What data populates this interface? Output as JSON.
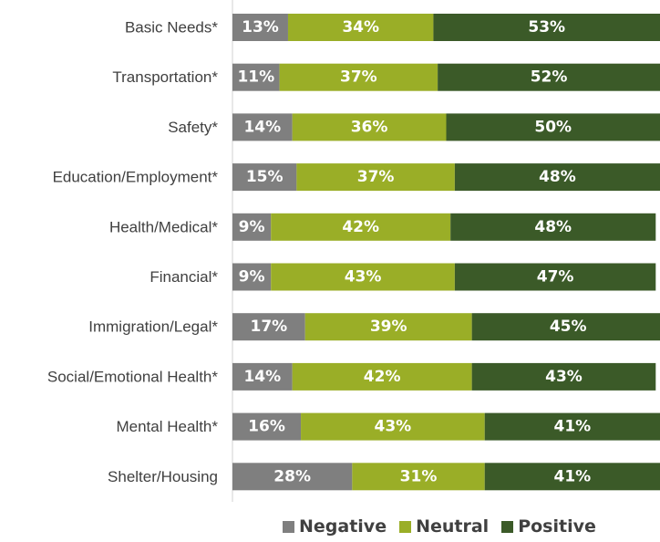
{
  "chart_data": {
    "type": "bar",
    "orientation": "horizontal",
    "stacked": true,
    "categories": [
      "Basic Needs*",
      "Transportation*",
      "Safety*",
      "Education/Employment*",
      "Health/Medical*",
      "Financial*",
      "Immigration/Legal*",
      "Social/Emotional Health*",
      "Mental Health*",
      "Shelter/Housing"
    ],
    "series": [
      {
        "name": "Negative",
        "color": "#7f7f7f",
        "values": [
          13,
          11,
          14,
          15,
          9,
          9,
          17,
          14,
          16,
          28
        ]
      },
      {
        "name": "Neutral",
        "color": "#9aae27",
        "values": [
          34,
          37,
          36,
          37,
          42,
          43,
          39,
          42,
          43,
          31
        ]
      },
      {
        "name": "Positive",
        "color": "#3b5a28",
        "values": [
          53,
          52,
          50,
          48,
          48,
          47,
          45,
          43,
          41,
          41
        ]
      }
    ],
    "value_suffix": "%",
    "xlim": [
      0,
      100
    ],
    "grid": false,
    "legend_position": "bottom"
  }
}
